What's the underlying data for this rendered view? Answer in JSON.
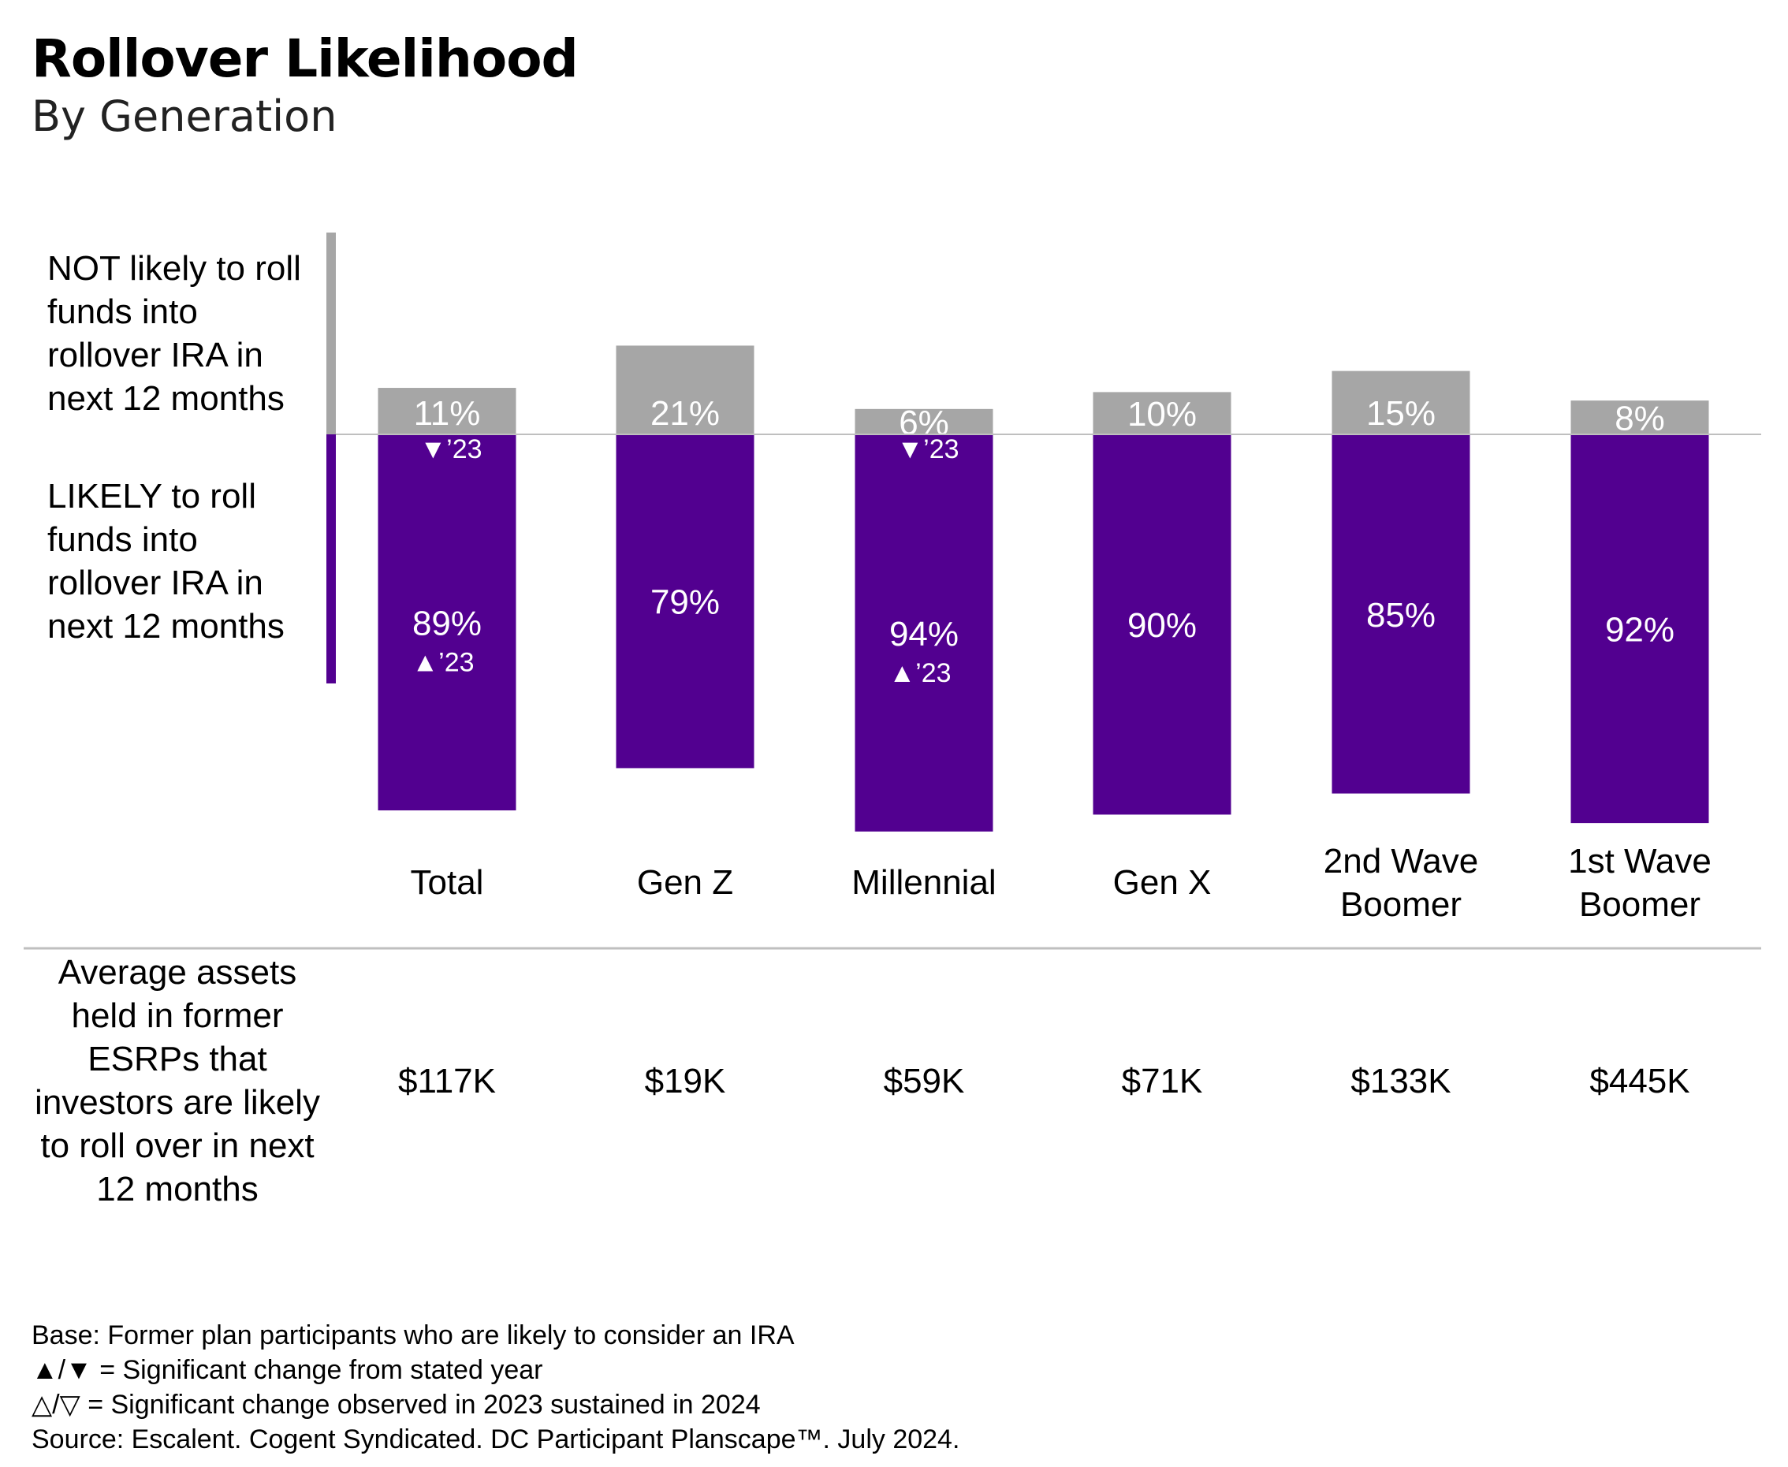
{
  "title": "Rollover Likelihood",
  "subtitle": "By Generation",
  "legend": {
    "not_likely": "NOT likely to roll funds into rollover IRA in next 12 months",
    "likely": "LIKELY to roll funds into rollover IRA in next 12 months"
  },
  "colors": {
    "likely": "#520090",
    "not_likely": "#a6a6a6",
    "baseline": "#bfbfbf"
  },
  "chart_data": {
    "type": "bar",
    "stacking": "diverging",
    "categories": [
      "Total",
      "Gen Z",
      "Millennial",
      "Gen X",
      "2nd Wave Boomer",
      "1st Wave Boomer"
    ],
    "series": [
      {
        "name": "NOT likely to roll funds into rollover IRA in next 12 months",
        "values": [
          11,
          21,
          6,
          10,
          15,
          8
        ],
        "labels": [
          "11%",
          "21%",
          "6%",
          "10%",
          "15%",
          "8%"
        ],
        "change_markers": [
          "▼’23",
          "",
          "▼’23",
          "",
          "",
          ""
        ]
      },
      {
        "name": "LIKELY to roll funds into rollover IRA in next 12 months",
        "values": [
          89,
          79,
          94,
          90,
          85,
          92
        ],
        "labels": [
          "89%",
          "79%",
          "94%",
          "90%",
          "85%",
          "92%"
        ],
        "change_markers": [
          "▲’23",
          "",
          "▲’23",
          "",
          "",
          ""
        ]
      }
    ],
    "unit": "%"
  },
  "assets_row": {
    "label": "Average assets held in former ESRPs that investors are likely to roll over in next 12 months",
    "values": [
      "$117K",
      "$19K",
      "$59K",
      "$71K",
      "$133K",
      "$445K"
    ]
  },
  "footnotes": [
    "Base: Former plan participants who are likely to consider an IRA",
    "▲/▼ = Significant change from stated year",
    "△/▽ = Significant change observed in 2023 sustained in 2024",
    "Source: Escalent. Cogent Syndicated. DC Participant Planscape™. July 2024."
  ]
}
